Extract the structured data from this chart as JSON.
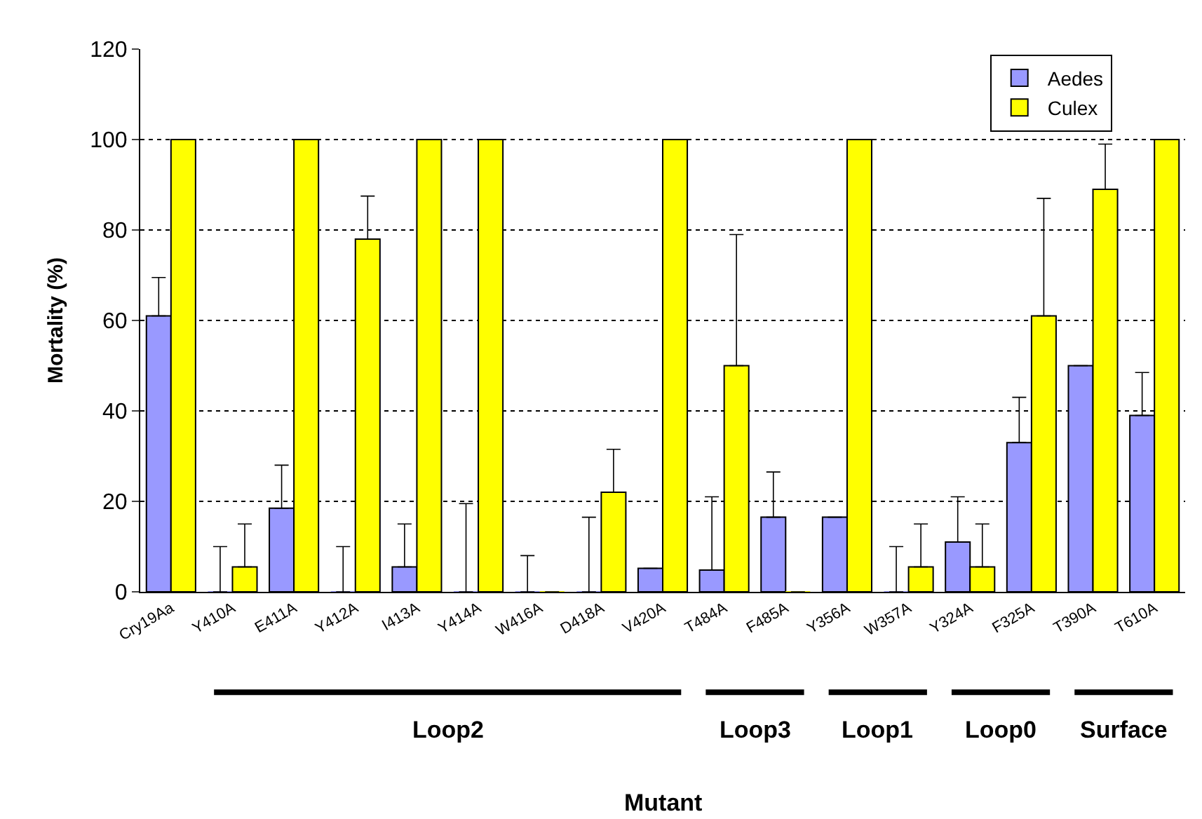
{
  "chart_data": {
    "type": "bar",
    "ylabel": "Mortality (%)",
    "categories": [
      "Cry19Aa",
      "Y410A",
      "E411A",
      "Y412A",
      "I413A",
      "Y414A",
      "W416A",
      "D418A",
      "V420A",
      "T484A",
      "F485A",
      "Y356A",
      "W357A",
      "Y324A",
      "F325A",
      "T390A",
      "T610A"
    ],
    "series": [
      {
        "name": "Aedes",
        "color": "#9999ff",
        "values": [
          61,
          0,
          18.5,
          0,
          5.5,
          0,
          0,
          0,
          5.2,
          4.8,
          16.5,
          16.5,
          0,
          11,
          33,
          50,
          39
        ],
        "errors": [
          [
            61,
            69.5
          ],
          [
            0,
            10
          ],
          [
            18.5,
            28
          ],
          [
            0,
            10
          ],
          [
            5.5,
            15
          ],
          [
            0,
            19.5
          ],
          [
            0,
            8
          ],
          [
            0,
            16.5
          ],
          null,
          [
            4.8,
            21
          ],
          [
            16.5,
            26.5
          ],
          null,
          [
            0,
            10
          ],
          [
            11,
            21
          ],
          [
            33,
            43
          ],
          null,
          [
            39,
            48.5
          ]
        ]
      },
      {
        "name": "Culex",
        "color": "#ffff00",
        "values": [
          100,
          5.5,
          100,
          78,
          100,
          100,
          0,
          22,
          100,
          50,
          0,
          100,
          5.5,
          5.5,
          61,
          89,
          100
        ],
        "errors": [
          null,
          [
            5.5,
            15
          ],
          null,
          [
            78,
            87.5
          ],
          null,
          null,
          null,
          [
            22,
            31.5
          ],
          null,
          [
            50,
            79
          ],
          null,
          null,
          [
            5.5,
            15
          ],
          [
            5.5,
            15
          ],
          [
            61,
            87
          ],
          [
            89,
            99
          ],
          null
        ]
      }
    ],
    "ylim": [
      0,
      120
    ],
    "yticks": [
      0,
      20,
      40,
      60,
      80,
      100,
      120
    ],
    "grid": "y",
    "legend": "top right",
    "annotations": [
      "Loop2",
      "Loop3",
      "Loop1",
      "Loop0",
      "Surface",
      "Mutant"
    ]
  }
}
